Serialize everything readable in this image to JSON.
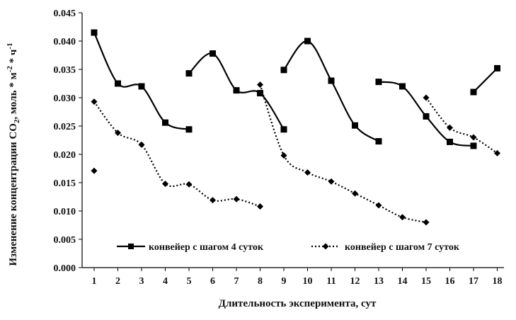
{
  "chart_data": {
    "type": "line",
    "title": "",
    "xlabel": "Длительность эксперимента, сут",
    "ylabel_main": "Изменение концентрации CO",
    "ylabel_sub": "2",
    "ylabel_tail": ", моль * м",
    "ylabel_sup1": "-2",
    "ylabel_tail2": " * ч",
    "ylabel_sup2": "-1",
    "xlim": [
      1,
      18
    ],
    "ylim": [
      0,
      0.045
    ],
    "grid": false,
    "legend_position": "bottom-center",
    "x_ticks": [
      "1",
      "2",
      "3",
      "4",
      "5",
      "6",
      "7",
      "8",
      "9",
      "10",
      "11",
      "12",
      "13",
      "14",
      "15",
      "16",
      "17",
      "18"
    ],
    "y_ticks": [
      "0.000",
      "0.005",
      "0.010",
      "0.015",
      "0.020",
      "0.025",
      "0.030",
      "0.035",
      "0.040",
      "0.045"
    ],
    "series": [
      {
        "name": "конвейер с шагом 4 суток",
        "style": "solid",
        "marker": "square",
        "color": "#000000",
        "segments": [
          [
            [
              1,
              0.0415
            ],
            [
              2,
              0.0325
            ],
            [
              3,
              0.032
            ],
            [
              4,
              0.0256
            ],
            [
              5,
              0.0244
            ]
          ],
          [
            [
              5,
              0.0343
            ],
            [
              6,
              0.0378
            ],
            [
              7,
              0.0313
            ],
            [
              8,
              0.0308
            ],
            [
              9,
              0.0244
            ]
          ],
          [
            [
              9,
              0.0349
            ],
            [
              10,
              0.04
            ],
            [
              11,
              0.033
            ],
            [
              12,
              0.0251
            ],
            [
              13,
              0.0223
            ]
          ],
          [
            [
              13,
              0.0328
            ],
            [
              14,
              0.032
            ],
            [
              15,
              0.0267
            ],
            [
              16,
              0.0222
            ],
            [
              17,
              0.0215
            ]
          ],
          [
            [
              17,
              0.031
            ],
            [
              18,
              0.0352
            ]
          ]
        ]
      },
      {
        "name": "конвейер с шагом 7 суток",
        "style": "dotted",
        "marker": "diamond",
        "color": "#000000",
        "segments": [
          [
            [
              1,
              0.0293
            ],
            [
              2,
              0.0238
            ],
            [
              3,
              0.0217
            ],
            [
              4,
              0.0148
            ],
            [
              5,
              0.0147
            ],
            [
              6,
              0.0119
            ],
            [
              7,
              0.0121
            ],
            [
              8,
              0.0108
            ]
          ],
          [
            [
              8,
              0.0323
            ],
            [
              9,
              0.0198
            ],
            [
              10,
              0.0168
            ],
            [
              11,
              0.0152
            ],
            [
              12,
              0.0131
            ],
            [
              13,
              0.011
            ],
            [
              14,
              0.0089
            ],
            [
              15,
              0.008
            ]
          ],
          [
            [
              15,
              0.03
            ],
            [
              16,
              0.0247
            ],
            [
              17,
              0.023
            ],
            [
              18,
              0.0202
            ]
          ]
        ],
        "isolated_points": [
          [
            1,
            0.0171
          ]
        ]
      }
    ]
  }
}
